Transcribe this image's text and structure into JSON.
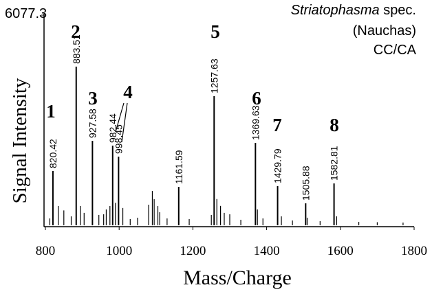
{
  "chart_data": {
    "type": "spectrum",
    "title": {
      "italic": "Striatophasma",
      "rest": "spec.",
      "lines": [
        "(Nauchas)",
        "CC/CA"
      ]
    },
    "xlabel": "Mass/Charge",
    "ylabel": "Signal Intensity",
    "xlim": [
      800,
      1800
    ],
    "xticks": [
      800,
      1000,
      1200,
      1400,
      1600,
      1800
    ],
    "ylim": [
      0,
      6077.3
    ],
    "yticks": [
      6077.3
    ],
    "color": "#000000",
    "peaks": {
      "x": [
        820.42,
        883.51,
        927.58,
        982.44,
        998.45,
        1161.59,
        1257.63,
        1369.63,
        1429.79,
        1505.88,
        1582.81
      ],
      "values": [
        1569,
        4588,
        2443,
        2304,
        1986,
        1112,
        3734,
        2383,
        1132,
        636,
        1211
      ]
    },
    "minor_peaks": {
      "x": [
        812,
        835,
        850,
        870,
        895,
        905,
        945,
        958,
        965,
        975,
        990,
        1010,
        1030,
        1050,
        1080,
        1090,
        1095,
        1105,
        1110,
        1130,
        1190,
        1250,
        1265,
        1275,
        1285,
        1300,
        1330,
        1375,
        1390,
        1440,
        1470,
        1510,
        1545,
        1590,
        1650,
        1700,
        1770
      ],
      "values": [
        200,
        556,
        430,
        260,
        556,
        360,
        300,
        320,
        460,
        556,
        650,
        500,
        180,
        220,
        596,
        994,
        755,
        556,
        380,
        200,
        180,
        300,
        760,
        560,
        360,
        320,
        160,
        460,
        200,
        260,
        140,
        220,
        120,
        260,
        100,
        90,
        80
      ]
    },
    "peak_numbers": [
      "1",
      "2",
      "3",
      "4",
      "5",
      "6",
      "7",
      "8"
    ]
  }
}
